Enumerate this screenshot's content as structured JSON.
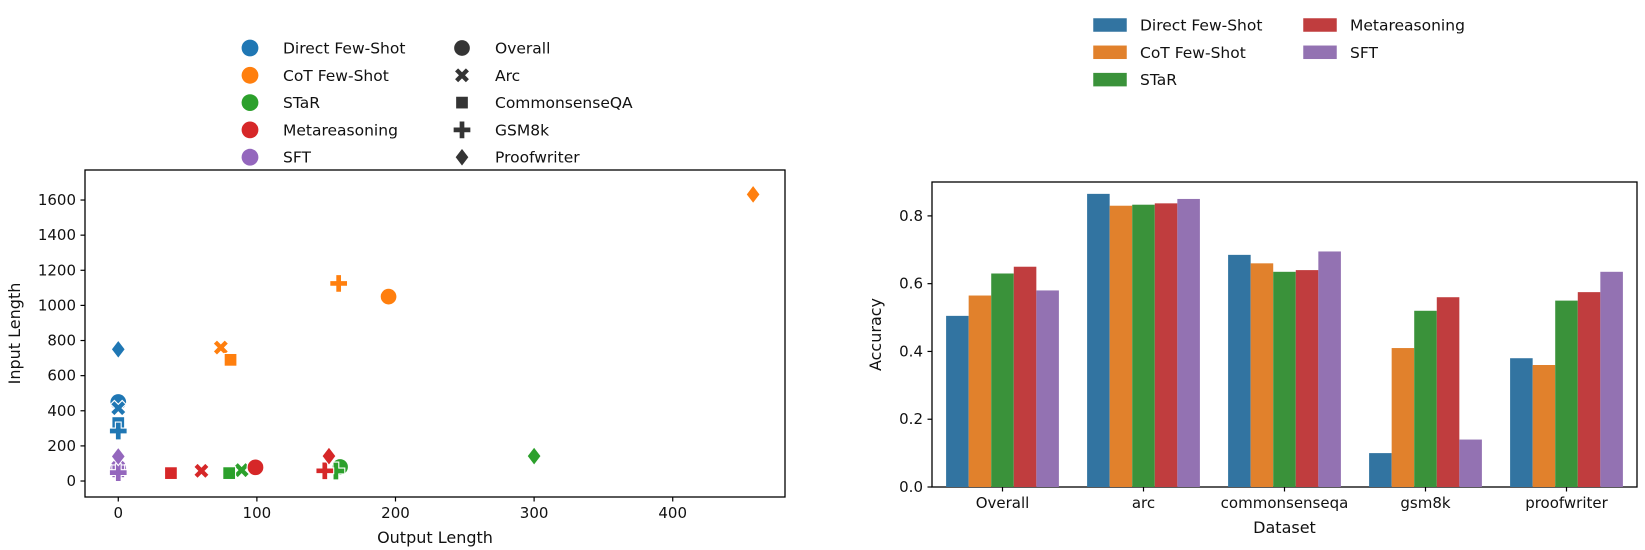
{
  "figure": {
    "background": "#ffffff"
  },
  "chart_data": [
    {
      "type": "scatter",
      "xlabel": "Output Length",
      "ylabel": "Input Length",
      "xlim": [
        -24,
        481
      ],
      "ylim": [
        -91,
        1771
      ],
      "xticks": [
        0,
        100,
        200,
        300,
        400
      ],
      "xtick_labels": [
        "0",
        "100",
        "200",
        "300",
        "400"
      ],
      "yticks": [
        0,
        200,
        400,
        600,
        800,
        1000,
        1200,
        1400,
        1600
      ],
      "ytick_labels": [
        "0",
        "200",
        "400",
        "600",
        "800",
        "1000",
        "1200",
        "1400",
        "1600"
      ],
      "grid": false,
      "legend_position": "upper-left-two-columns",
      "method_legend": [
        {
          "label": "Direct Few-Shot",
          "color": "#1f77b4"
        },
        {
          "label": "CoT Few-Shot",
          "color": "#ff7f0e"
        },
        {
          "label": "STaR",
          "color": "#2ca02c"
        },
        {
          "label": "Metareasoning",
          "color": "#d62728"
        },
        {
          "label": "SFT",
          "color": "#9467bd"
        }
      ],
      "marker_legend": [
        {
          "label": "Overall",
          "marker": "circle"
        },
        {
          "label": "Arc",
          "marker": "x"
        },
        {
          "label": "CommonsenseQA",
          "marker": "square"
        },
        {
          "label": "GSM8k",
          "marker": "plus"
        },
        {
          "label": "Proofwriter",
          "marker": "diamond"
        }
      ],
      "legend_marker_color": "#343434",
      "series": [
        {
          "name": "Direct Few-Shot",
          "color": "#1f77b4",
          "points": [
            {
              "dataset": "Overall",
              "marker": "circle",
              "x": 0,
              "y": 450
            },
            {
              "dataset": "Arc",
              "marker": "x",
              "x": 0,
              "y": 415
            },
            {
              "dataset": "CommonsenseQA",
              "marker": "square",
              "x": 0,
              "y": 330
            },
            {
              "dataset": "GSM8k",
              "marker": "plus",
              "x": 0,
              "y": 285
            },
            {
              "dataset": "Proofwriter",
              "marker": "diamond",
              "x": 0,
              "y": 750
            }
          ]
        },
        {
          "name": "CoT Few-Shot",
          "color": "#ff7f0e",
          "points": [
            {
              "dataset": "Overall",
              "marker": "circle",
              "x": 195,
              "y": 1050
            },
            {
              "dataset": "Arc",
              "marker": "x",
              "x": 74,
              "y": 760
            },
            {
              "dataset": "CommonsenseQA",
              "marker": "square",
              "x": 81,
              "y": 690
            },
            {
              "dataset": "GSM8k",
              "marker": "plus",
              "x": 159,
              "y": 1125
            },
            {
              "dataset": "Proofwriter",
              "marker": "diamond",
              "x": 458,
              "y": 1632
            }
          ]
        },
        {
          "name": "STaR",
          "color": "#2ca02c",
          "points": [
            {
              "dataset": "Overall",
              "marker": "circle",
              "x": 160,
              "y": 80
            },
            {
              "dataset": "Arc",
              "marker": "x",
              "x": 89,
              "y": 62
            },
            {
              "dataset": "CommonsenseQA",
              "marker": "square",
              "x": 80,
              "y": 45
            },
            {
              "dataset": "GSM8k",
              "marker": "plus",
              "x": 157,
              "y": 57
            },
            {
              "dataset": "Proofwriter",
              "marker": "diamond",
              "x": 300,
              "y": 142
            }
          ]
        },
        {
          "name": "Metareasoning",
          "color": "#d62728",
          "points": [
            {
              "dataset": "Overall",
              "marker": "circle",
              "x": 99,
              "y": 78
            },
            {
              "dataset": "Arc",
              "marker": "x",
              "x": 60,
              "y": 58
            },
            {
              "dataset": "CommonsenseQA",
              "marker": "square",
              "x": 38,
              "y": 45
            },
            {
              "dataset": "GSM8k",
              "marker": "plus",
              "x": 149,
              "y": 58
            },
            {
              "dataset": "Proofwriter",
              "marker": "diamond",
              "x": 152,
              "y": 142
            }
          ]
        },
        {
          "name": "SFT",
          "color": "#9467bd",
          "points": [
            {
              "dataset": "Overall",
              "marker": "circle",
              "x": 0,
              "y": 70
            },
            {
              "dataset": "Arc",
              "marker": "x",
              "x": 0,
              "y": 78
            },
            {
              "dataset": "CommonsenseQA",
              "marker": "square",
              "x": 0,
              "y": 55
            },
            {
              "dataset": "GSM8k",
              "marker": "plus",
              "x": 0,
              "y": 48
            },
            {
              "dataset": "Proofwriter",
              "marker": "diamond",
              "x": 0,
              "y": 140
            }
          ]
        }
      ]
    },
    {
      "type": "bar",
      "xlabel": "Dataset",
      "ylabel": "Accuracy",
      "categories": [
        "Overall",
        "arc",
        "commonsenseqa",
        "gsm8k",
        "proofwriter"
      ],
      "ylim": [
        0,
        0.9
      ],
      "yticks": [
        0.0,
        0.2,
        0.4,
        0.6,
        0.8
      ],
      "ytick_labels": [
        "0.0",
        "0.2",
        "0.4",
        "0.6",
        "0.8"
      ],
      "grid": false,
      "legend_position": "top-right-two-columns",
      "series": [
        {
          "name": "Direct Few-Shot",
          "color": "#3274a1",
          "values": [
            0.505,
            0.865,
            0.685,
            0.1,
            0.38
          ]
        },
        {
          "name": "CoT Few-Shot",
          "color": "#e1812c",
          "values": [
            0.565,
            0.83,
            0.66,
            0.41,
            0.36
          ]
        },
        {
          "name": "STaR",
          "color": "#3a923a",
          "values": [
            0.63,
            0.833,
            0.635,
            0.52,
            0.55
          ]
        },
        {
          "name": "Metareasoning",
          "color": "#c03d3e",
          "values": [
            0.65,
            0.837,
            0.64,
            0.56,
            0.575
          ]
        },
        {
          "name": "SFT",
          "color": "#9372b2",
          "values": [
            0.58,
            0.85,
            0.695,
            0.14,
            0.635
          ]
        }
      ]
    }
  ]
}
